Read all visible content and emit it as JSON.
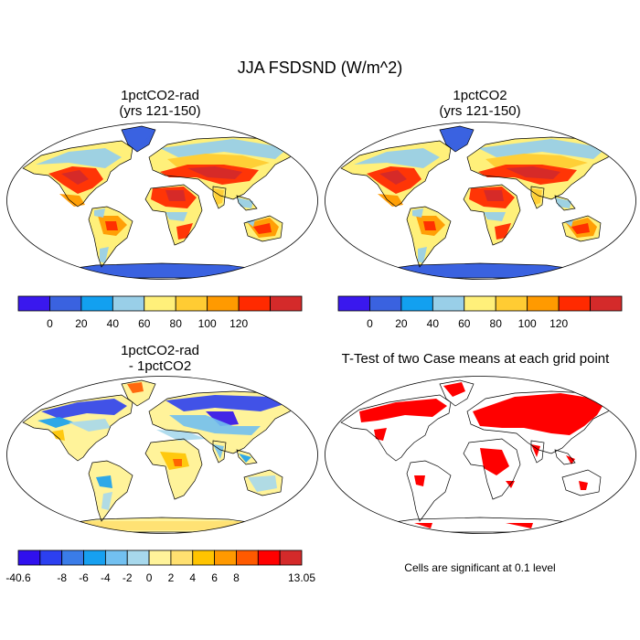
{
  "title": "JJA FSDSND (W/m^2)",
  "panels": {
    "top_left": {
      "title_line1": "1pctCO2-rad",
      "title_line2": "(yrs 121-150)"
    },
    "top_right": {
      "title_line1": "1pctCO2",
      "title_line2": "(yrs 121-150)"
    },
    "bottom_left": {
      "title_line1": "1pctCO2-rad",
      "title_line2": "- 1pctCO2"
    },
    "bottom_right": {
      "title_line1": "T-Test of two Case means at each grid point",
      "title_line2": ""
    }
  },
  "colorbar_mean": {
    "colors": [
      "#3a18ee",
      "#3a62e0",
      "#12a0f0",
      "#99cfe8",
      "#fff07a",
      "#ffcc33",
      "#ff9a00",
      "#ff2a00",
      "#d42a2a"
    ],
    "labels": [
      "0",
      "20",
      "40",
      "60",
      "80",
      "100",
      "120"
    ]
  },
  "colorbar_diff": {
    "colors": [
      "#3010ee",
      "#2c40f0",
      "#3a7ce8",
      "#17a0f0",
      "#72c0f0",
      "#a7d8ec",
      "#fff39a",
      "#ffe070",
      "#ffc400",
      "#ff9900",
      "#ff5a00",
      "#ff0000",
      "#d42a2a"
    ],
    "labels": [
      "-40.6",
      "-8",
      "-6",
      "-4",
      "-2",
      "0",
      "2",
      "4",
      "6",
      "8",
      "13.05"
    ]
  },
  "ttest_note": "Cells are significant at 0.1 level",
  "significance_color": "#ff0000"
}
